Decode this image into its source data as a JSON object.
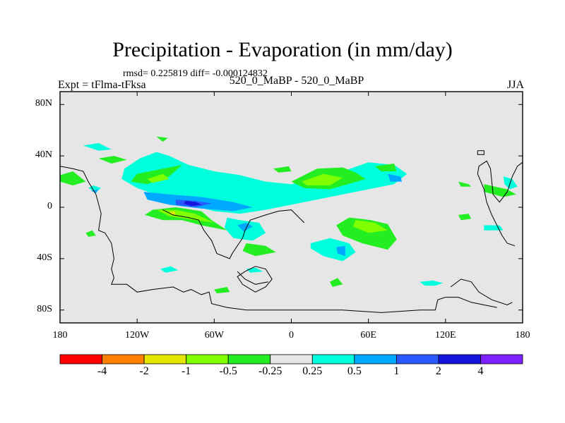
{
  "title": "Precipitation - Evaporation (in mm/day)",
  "stats_line": "rmsd= 0.225819 diff= -0.000124832",
  "left_label": "Expt = tFlma-tFksa",
  "center_label": "520_0_MaBP - 520_0_MaBP",
  "right_label": "JJA",
  "map": {
    "projection": "cylindrical-equidistant",
    "lon_range": [
      -180,
      180
    ],
    "lat_range": [
      -90,
      90
    ],
    "background_color": "#e6e6e6",
    "lat_ticks": [
      {
        "value": 80,
        "label": "80N"
      },
      {
        "value": 40,
        "label": "40N"
      },
      {
        "value": 0,
        "label": "0"
      },
      {
        "value": -40,
        "label": "40S"
      },
      {
        "value": -80,
        "label": "80S"
      }
    ],
    "lon_ticks": [
      {
        "value": -180,
        "label": "180"
      },
      {
        "value": -120,
        "label": "120W"
      },
      {
        "value": -60,
        "label": "60W"
      },
      {
        "value": 0,
        "label": "0"
      },
      {
        "value": 60,
        "label": "60E"
      },
      {
        "value": 120,
        "label": "120E"
      },
      {
        "value": 180,
        "label": "180"
      }
    ]
  },
  "colorbar": {
    "colors": [
      "#ff0000",
      "#ff7f00",
      "#e6e600",
      "#7fff00",
      "#22ee22",
      "#e6e6e6",
      "#00ffdd",
      "#00a8ff",
      "#2a5aff",
      "#1414dd",
      "#7f20ff"
    ],
    "labels": [
      "-4",
      "-2",
      "-1",
      "-0.5",
      "-0.25",
      "0.25",
      "0.5",
      "1",
      "2",
      "4"
    ]
  },
  "fields": [
    {
      "level": "0.5",
      "color": "#00ffdd",
      "polys": [
        [
          [
            -130,
            30
          ],
          [
            -118,
            38
          ],
          [
            -105,
            43
          ],
          [
            -95,
            40
          ],
          [
            -80,
            33
          ],
          [
            -60,
            28
          ],
          [
            -40,
            25
          ],
          [
            -20,
            20
          ],
          [
            0,
            18
          ],
          [
            20,
            22
          ],
          [
            40,
            28
          ],
          [
            60,
            35
          ],
          [
            80,
            33
          ],
          [
            90,
            26
          ],
          [
            80,
            18
          ],
          [
            60,
            14
          ],
          [
            40,
            10
          ],
          [
            20,
            6
          ],
          [
            0,
            2
          ],
          [
            -20,
            -2
          ],
          [
            -40,
            -5
          ],
          [
            -60,
            -3
          ],
          [
            -80,
            2
          ],
          [
            -100,
            8
          ],
          [
            -120,
            15
          ],
          [
            -132,
            22
          ]
        ],
        [
          [
            -50,
            -8
          ],
          [
            -40,
            -10
          ],
          [
            -25,
            -12
          ],
          [
            -20,
            -20
          ],
          [
            -30,
            -26
          ],
          [
            -45,
            -24
          ],
          [
            -52,
            -16
          ]
        ],
        [
          [
            15,
            -28
          ],
          [
            30,
            -24
          ],
          [
            45,
            -28
          ],
          [
            50,
            -35
          ],
          [
            40,
            -42
          ],
          [
            25,
            -38
          ],
          [
            15,
            -32
          ]
        ],
        [
          [
            -162,
            48
          ],
          [
            -150,
            44
          ],
          [
            -140,
            45
          ],
          [
            -150,
            50
          ]
        ],
        [
          [
            -102,
            -48
          ],
          [
            -94,
            -46
          ],
          [
            -88,
            -49
          ],
          [
            -98,
            -51
          ]
        ],
        [
          [
            -35,
            -48
          ],
          [
            -28,
            -47
          ],
          [
            -22,
            -50
          ],
          [
            -32,
            -51
          ]
        ],
        [
          [
            100,
            -58
          ],
          [
            110,
            -57
          ],
          [
            118,
            -59
          ],
          [
            112,
            -61
          ],
          [
            104,
            -61
          ]
        ],
        [
          [
            -158,
            15
          ],
          [
            -152,
            12
          ],
          [
            -148,
            15
          ],
          [
            -154,
            17
          ]
        ],
        [
          [
            150,
            -14
          ],
          [
            162,
            -14
          ],
          [
            165,
            -18
          ],
          [
            150,
            -18
          ]
        ],
        [
          [
            165,
            24
          ],
          [
            172,
            22
          ],
          [
            176,
            16
          ],
          [
            170,
            14
          ],
          [
            166,
            18
          ]
        ]
      ]
    },
    {
      "level": "1",
      "color": "#00a8ff",
      "polys": [
        [
          [
            -115,
            12
          ],
          [
            -95,
            10
          ],
          [
            -70,
            8
          ],
          [
            -45,
            4
          ],
          [
            -30,
            0
          ],
          [
            -45,
            -3
          ],
          [
            -70,
            -1
          ],
          [
            -95,
            2
          ],
          [
            -112,
            6
          ]
        ],
        [
          [
            -42,
            -14
          ],
          [
            -35,
            -12
          ],
          [
            -30,
            -15
          ],
          [
            -37,
            -19
          ]
        ],
        [
          [
            20,
            20
          ],
          [
            35,
            22
          ],
          [
            40,
            18
          ],
          [
            32,
            15
          ],
          [
            22,
            16
          ]
        ],
        [
          [
            75,
            26
          ],
          [
            85,
            24
          ],
          [
            86,
            20
          ],
          [
            77,
            20
          ]
        ],
        [
          [
            35,
            -31
          ],
          [
            42,
            -30
          ],
          [
            42,
            -38
          ],
          [
            36,
            -36
          ]
        ],
        [
          [
            -156,
            13
          ],
          [
            -152,
            11
          ],
          [
            -150,
            14
          ]
        ]
      ]
    },
    {
      "level": "2",
      "color": "#2a5aff",
      "polys": [
        [
          [
            -90,
            6
          ],
          [
            -75,
            5
          ],
          [
            -62,
            3
          ],
          [
            -75,
            0
          ],
          [
            -90,
            2
          ]
        ],
        [
          [
            22,
            19
          ],
          [
            30,
            20
          ],
          [
            33,
            17
          ],
          [
            26,
            16
          ]
        ]
      ]
    },
    {
      "level": "4",
      "color": "#1414dd",
      "polys": [
        [
          [
            -82,
            5
          ],
          [
            -74,
            4
          ],
          [
            -70,
            2
          ],
          [
            -78,
            1
          ],
          [
            -84,
            3
          ]
        ]
      ]
    },
    {
      "level": "-0.25",
      "color": "#22ee22",
      "polys": [
        [
          [
            -120,
            26
          ],
          [
            -100,
            30
          ],
          [
            -85,
            33
          ],
          [
            -95,
            24
          ],
          [
            -112,
            18
          ],
          [
            -125,
            20
          ]
        ],
        [
          [
            -108,
            -2
          ],
          [
            -90,
            0
          ],
          [
            -70,
            -3
          ],
          [
            -62,
            -10
          ],
          [
            -50,
            -18
          ],
          [
            -70,
            -14
          ],
          [
            -85,
            -10
          ],
          [
            -100,
            -10
          ],
          [
            -114,
            -6
          ]
        ],
        [
          [
            0,
            20
          ],
          [
            20,
            30
          ],
          [
            40,
            31
          ],
          [
            50,
            27
          ],
          [
            58,
            22
          ],
          [
            30,
            14
          ],
          [
            10,
            15
          ]
        ],
        [
          [
            45,
            -8
          ],
          [
            62,
            -10
          ],
          [
            75,
            -13
          ],
          [
            82,
            -25
          ],
          [
            75,
            -33
          ],
          [
            55,
            -28
          ],
          [
            40,
            -22
          ],
          [
            35,
            -14
          ]
        ],
        [
          [
            -180,
            25
          ],
          [
            -170,
            28
          ],
          [
            -160,
            20
          ],
          [
            -170,
            17
          ],
          [
            -180,
            20
          ]
        ],
        [
          [
            -35,
            -28
          ],
          [
            -20,
            -30
          ],
          [
            -12,
            -35
          ],
          [
            -28,
            -38
          ],
          [
            -38,
            -34
          ]
        ],
        [
          [
            65,
            32
          ],
          [
            80,
            34
          ],
          [
            82,
            28
          ],
          [
            70,
            28
          ]
        ],
        [
          [
            150,
            18
          ],
          [
            168,
            14
          ],
          [
            175,
            10
          ],
          [
            165,
            8
          ],
          [
            150,
            12
          ]
        ],
        [
          [
            -150,
            38
          ],
          [
            -138,
            40
          ],
          [
            -128,
            37
          ],
          [
            -140,
            34
          ]
        ],
        [
          [
            -14,
            30
          ],
          [
            -2,
            32
          ],
          [
            0,
            28
          ],
          [
            -10,
            27
          ]
        ],
        [
          [
            -60,
            -64
          ],
          [
            -50,
            -62
          ],
          [
            -48,
            -66
          ],
          [
            -58,
            -67
          ]
        ],
        [
          [
            30,
            -58
          ],
          [
            36,
            -55
          ],
          [
            40,
            -60
          ],
          [
            32,
            -62
          ]
        ],
        [
          [
            -105,
            55
          ],
          [
            -96,
            54
          ],
          [
            -100,
            51
          ]
        ],
        [
          [
            -160,
            -20
          ],
          [
            -155,
            -18
          ],
          [
            -152,
            -22
          ],
          [
            -158,
            -23
          ]
        ],
        [
          [
            130,
            -6
          ],
          [
            138,
            -5
          ],
          [
            140,
            -9
          ],
          [
            132,
            -10
          ]
        ],
        [
          [
            130,
            20
          ],
          [
            138,
            18
          ],
          [
            140,
            16
          ],
          [
            132,
            16
          ]
        ]
      ]
    },
    {
      "level": "-0.5",
      "color": "#7fff00",
      "polys": [
        [
          [
            -105,
            -2
          ],
          [
            -90,
            -2
          ],
          [
            -75,
            -5
          ],
          [
            -60,
            -12
          ],
          [
            -75,
            -10
          ],
          [
            -95,
            -7
          ]
        ],
        [
          [
            8,
            20
          ],
          [
            25,
            26
          ],
          [
            40,
            23
          ],
          [
            30,
            17
          ],
          [
            12,
            17
          ]
        ],
        [
          [
            50,
            -10
          ],
          [
            65,
            -12
          ],
          [
            75,
            -18
          ],
          [
            60,
            -20
          ],
          [
            48,
            -15
          ]
        ],
        [
          [
            -112,
            22
          ],
          [
            -100,
            26
          ],
          [
            -95,
            22
          ],
          [
            -108,
            19
          ]
        ]
      ]
    },
    {
      "level": "-1",
      "color": "#e6e600",
      "polys": [
        [
          [
            -95,
            -4
          ],
          [
            -91,
            -3
          ],
          [
            -90,
            -6
          ],
          [
            -94,
            -6
          ]
        ]
      ]
    }
  ],
  "coastlines": [
    [
      [
        -180,
        32
      ],
      [
        -170,
        30
      ],
      [
        -162,
        28
      ],
      [
        -158,
        20
      ],
      [
        -152,
        10
      ],
      [
        -148,
        -5
      ],
      [
        -150,
        -18
      ],
      [
        -145,
        -20
      ],
      [
        -140,
        -28
      ],
      [
        -138,
        -40
      ],
      [
        -140,
        -48
      ],
      [
        -138,
        -55
      ],
      [
        -140,
        -60
      ],
      [
        -128,
        -60
      ],
      [
        -120,
        -66
      ],
      [
        -108,
        -64
      ],
      [
        -92,
        -62
      ],
      [
        -84,
        -66
      ],
      [
        -78,
        -64
      ],
      [
        -70,
        -68
      ],
      [
        -64,
        -66
      ],
      [
        -62,
        -75
      ],
      [
        -50,
        -78
      ],
      [
        -35,
        -80
      ],
      [
        0,
        -80
      ],
      [
        40,
        -80
      ],
      [
        70,
        -82
      ],
      [
        100,
        -80
      ],
      [
        112,
        -80
      ],
      [
        114,
        -72
      ],
      [
        120,
        -70
      ],
      [
        130,
        -70
      ],
      [
        140,
        -74
      ],
      [
        150,
        -76
      ],
      [
        160,
        -78
      ]
    ],
    [
      [
        -100,
        -2
      ],
      [
        -92,
        -6
      ],
      [
        -80,
        -8
      ],
      [
        -72,
        -10
      ],
      [
        -68,
        -18
      ],
      [
        -62,
        -26
      ],
      [
        -58,
        -36
      ],
      [
        -48,
        -40
      ],
      [
        -46,
        -36
      ],
      [
        -38,
        -24
      ],
      [
        -36,
        -18
      ],
      [
        -32,
        -10
      ],
      [
        -20,
        -6
      ],
      [
        -10,
        -3
      ],
      [
        0,
        -2
      ],
      [
        6,
        -8
      ],
      [
        10,
        -12
      ]
    ],
    [
      [
        -28,
        -46
      ],
      [
        -20,
        -48
      ],
      [
        -15,
        -56
      ],
      [
        -20,
        -62
      ],
      [
        -28,
        -66
      ],
      [
        -38,
        -60
      ],
      [
        -42,
        -54
      ],
      [
        -36,
        -50
      ],
      [
        -28,
        -46
      ]
    ],
    [
      [
        -42,
        -50
      ],
      [
        -36,
        -56
      ],
      [
        -28,
        -60
      ],
      [
        -18,
        -58
      ]
    ],
    [
      [
        140,
        -58
      ],
      [
        146,
        -66
      ],
      [
        156,
        -72
      ],
      [
        168,
        -76
      ],
      [
        172,
        -74
      ]
    ],
    [
      [
        174,
        -30
      ],
      [
        168,
        -28
      ],
      [
        164,
        -22
      ],
      [
        160,
        -14
      ],
      [
        156,
        -6
      ],
      [
        152,
        4
      ],
      [
        150,
        14
      ],
      [
        145,
        26
      ],
      [
        146,
        32
      ],
      [
        152,
        36
      ],
      [
        155,
        30
      ],
      [
        157,
        10
      ],
      [
        162,
        4
      ],
      [
        168,
        12
      ],
      [
        172,
        24
      ],
      [
        176,
        32
      ],
      [
        180,
        35
      ]
    ],
    [
      [
        145,
        44
      ],
      [
        150,
        44
      ],
      [
        150,
        41
      ],
      [
        145,
        41
      ],
      [
        145,
        44
      ]
    ],
    [
      [
        124,
        -62
      ],
      [
        132,
        -56
      ],
      [
        140,
        -58
      ]
    ]
  ]
}
